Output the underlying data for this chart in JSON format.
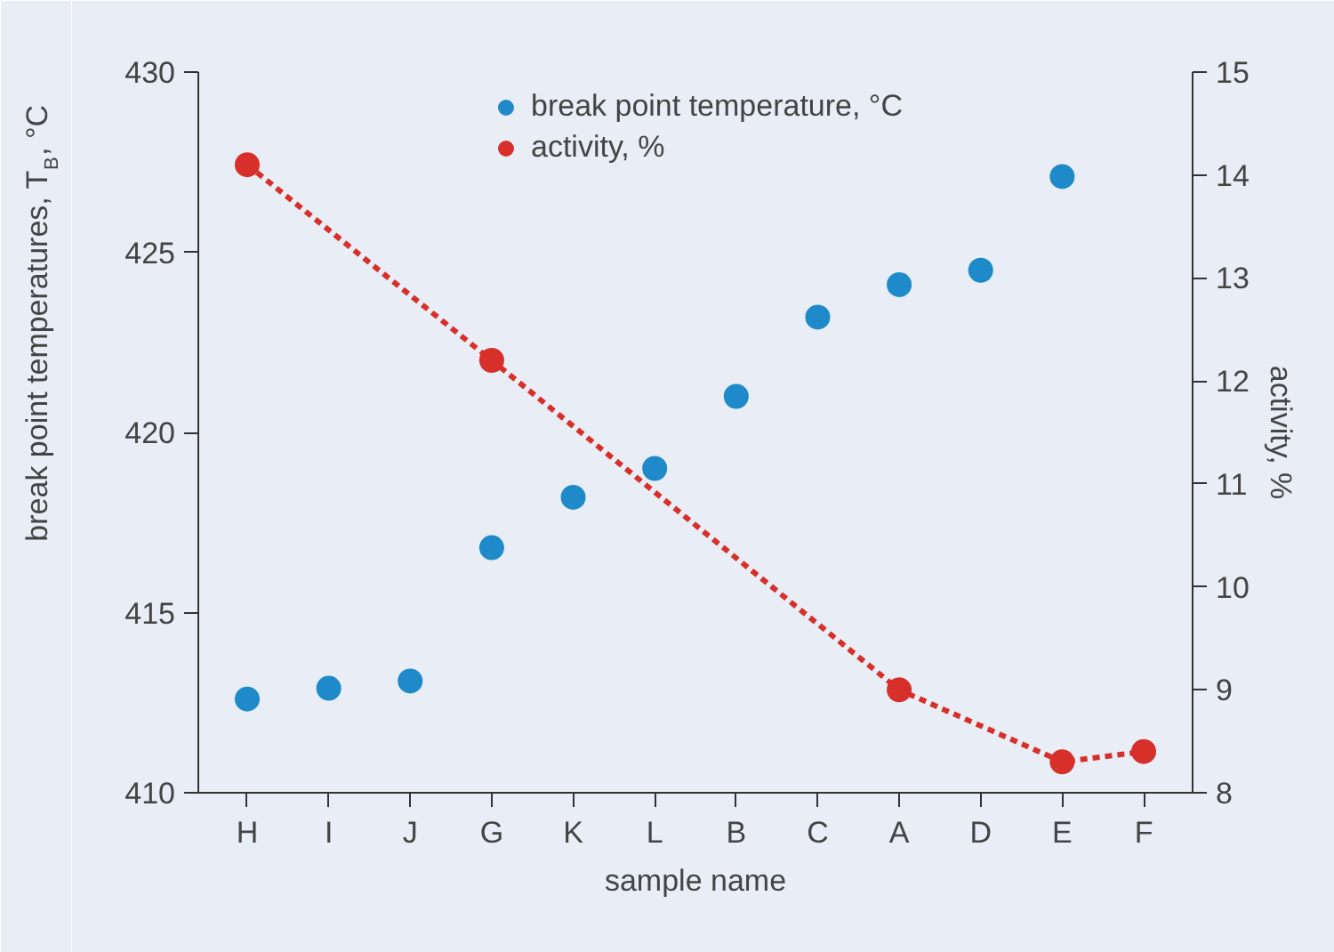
{
  "chart_data": {
    "type": "scatter",
    "xlabel": "sample name",
    "ylabel": "break point temperatures, T$_{B}$, °C",
    "y2label": "activity, %",
    "categories": [
      "H",
      "I",
      "J",
      "G",
      "K",
      "L",
      "B",
      "C",
      "A",
      "D",
      "E",
      "F"
    ],
    "series": [
      {
        "name": "break point temperature, °C",
        "color": "#1f8ac9",
        "values": [
          412.6,
          412.9,
          413.1,
          416.8,
          418.2,
          419.0,
          421.0,
          423.2,
          424.1,
          424.5,
          427.1,
          null
        ]
      },
      {
        "name": "activity, %",
        "color": "#d7302a",
        "type": "line",
        "axis": "y2",
        "line_style": "dashed",
        "values": [
          14.1,
          null,
          null,
          12.2,
          null,
          null,
          null,
          null,
          9.0,
          null,
          8.3,
          8.4
        ]
      }
    ],
    "ylim": [
      410,
      430
    ],
    "yticks": [
      410,
      415,
      420,
      425,
      430
    ],
    "y2lim": [
      8,
      15
    ],
    "y2ticks": [
      8,
      9,
      10,
      11,
      12,
      13,
      14,
      15
    ],
    "marker": "circle",
    "grid": false,
    "legend": "top"
  }
}
